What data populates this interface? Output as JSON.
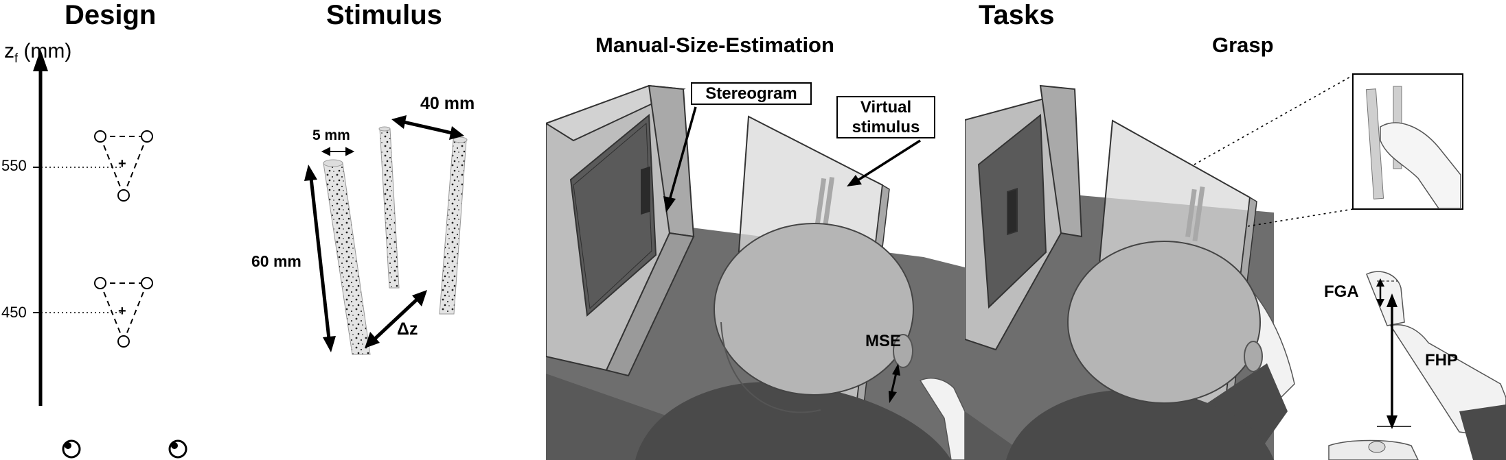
{
  "design": {
    "title": "Design",
    "axis_label_main": "z",
    "axis_label_sub": "f",
    "axis_label_unit": " (mm)",
    "ticks": [
      "550",
      "450"
    ],
    "fixation_symbol": "+"
  },
  "stimulus": {
    "title": "Stimulus",
    "width_label": "5 mm",
    "height_label": "60 mm",
    "separation_label": "40 mm",
    "depth_label": "Δz"
  },
  "tasks": {
    "title": "Tasks",
    "mse": {
      "title": "Manual-Size-Estimation",
      "stereogram_label": "Stereogram",
      "virtual_line1": "Virtual",
      "virtual_line2": "stimulus",
      "response_label": "MSE"
    },
    "grasp": {
      "title": "Grasp",
      "fga_label": "FGA",
      "fhp_label": "FHP"
    }
  },
  "colors": {
    "floor": "#6e6e6e",
    "monitor": "#bdbdbd",
    "monitor_screen": "#5a5a5a",
    "head": "#b5b5b5",
    "shirt": "#4a4a4a",
    "glass": "#d9d9d9"
  }
}
